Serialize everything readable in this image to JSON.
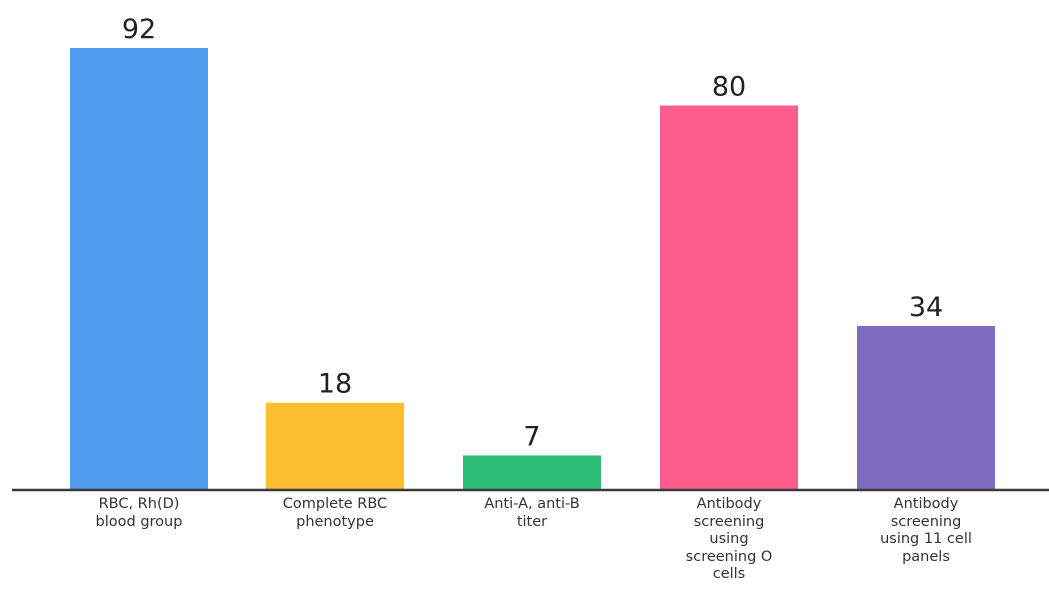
{
  "chart_data": {
    "type": "bar",
    "title": "",
    "xlabel": "",
    "ylabel": "",
    "ylim": [
      0,
      92
    ],
    "grid": false,
    "legend": "none",
    "categories": [
      "RBC, Rh(D)\nblood group",
      "Complete RBC\nphenotype",
      "Anti-A, anti-B\ntiter",
      "Antibody\nscreening\nusing\nscreening O\ncells",
      "Antibody\nscreening\nusing 11 cell\npanels"
    ],
    "values": [
      92,
      18,
      7,
      80,
      34
    ],
    "colors": [
      "#4f9bee",
      "#fbbe2d",
      "#2ebd77",
      "#fc5c8c",
      "#7f6cc0"
    ]
  }
}
